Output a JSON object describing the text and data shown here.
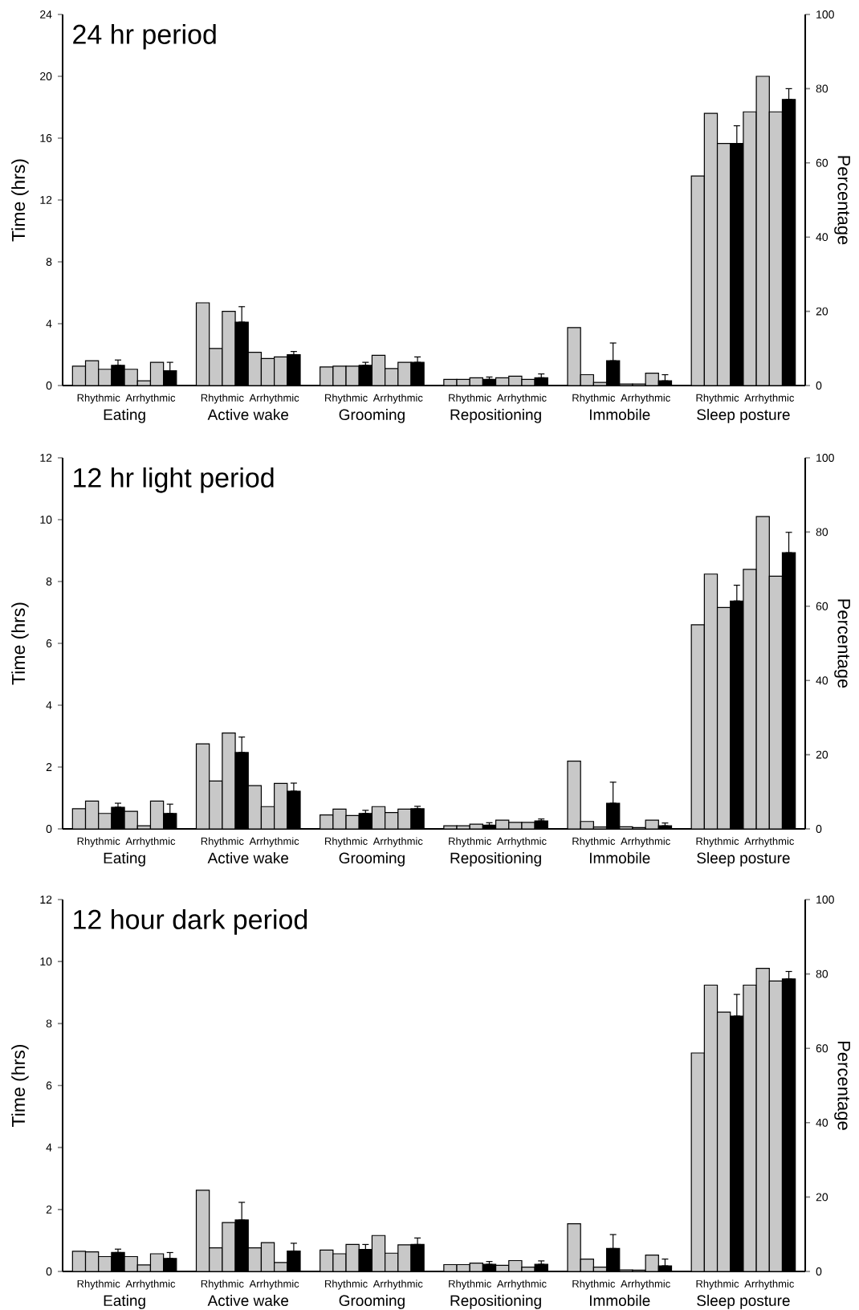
{
  "chart_data": [
    {
      "type": "bar",
      "title": "24 hr period",
      "ylabel": "Time (hrs)",
      "y2label": "Percentage",
      "categories": [
        "Eating",
        "Active wake",
        "Grooming",
        "Repositioning",
        "Immobile",
        "Sleep posture"
      ],
      "ylim": [
        0,
        24
      ],
      "yticks": [
        0,
        4,
        8,
        12,
        16,
        20,
        24
      ],
      "y2lim": [
        0,
        100
      ],
      "y2ticks": [
        0,
        20,
        40,
        60,
        80,
        100
      ],
      "annotations": [
        "Rhythmic",
        "Arrhythmic",
        "Rhythmic",
        "Arrhythmic",
        "Rhythmic",
        "Arrhythmic",
        "Rhythmic",
        "Arrhythmic",
        "Rhythmic",
        "Arrhythmic",
        "Rhythmic",
        "Arrhythmic"
      ],
      "series": [
        {
          "color": "#c8c8c8",
          "values": [
            1.25,
            5.35,
            1.2,
            0.4,
            3.75,
            13.55
          ]
        },
        {
          "color": "#c8c8c8",
          "values": [
            1.6,
            2.4,
            1.25,
            0.4,
            0.7,
            17.6
          ]
        },
        {
          "color": "#c8c8c8",
          "values": [
            1.05,
            4.8,
            1.25,
            0.5,
            0.2,
            15.65
          ]
        },
        {
          "color": "#000000",
          "values": [
            1.3,
            4.1,
            1.3,
            0.4,
            1.6,
            15.65
          ],
          "errors": [
            [
              1.3,
              1.65
            ],
            [
              4.1,
              5.1
            ],
            [
              1.3,
              1.5
            ],
            [
              0.4,
              0.55
            ],
            [
              1.6,
              2.75
            ],
            [
              15.65,
              16.8
            ]
          ]
        },
        {
          "color": "#c8c8c8",
          "values": [
            1.05,
            2.15,
            1.95,
            0.5,
            0.1,
            17.7
          ]
        },
        {
          "color": "#c8c8c8",
          "values": [
            0.3,
            1.75,
            1.1,
            0.6,
            0.1,
            20.0
          ]
        },
        {
          "color": "#c8c8c8",
          "values": [
            1.5,
            1.85,
            1.5,
            0.4,
            0.8,
            17.7
          ]
        },
        {
          "color": "#000000",
          "values": [
            0.95,
            2.0,
            1.5,
            0.5,
            0.3,
            18.5
          ],
          "errors": [
            [
              0.95,
              1.5
            ],
            [
              2.0,
              2.2
            ],
            [
              1.5,
              1.85
            ],
            [
              0.5,
              0.75
            ],
            [
              0.3,
              0.7
            ],
            [
              18.5,
              19.2
            ]
          ]
        }
      ]
    },
    {
      "type": "bar",
      "title": "12 hr light period",
      "ylabel": "Time (hrs)",
      "y2label": "Percentage",
      "categories": [
        "Eating",
        "Active wake",
        "Grooming",
        "Repositioning",
        "Immobile",
        "Sleep posture"
      ],
      "ylim": [
        0,
        12
      ],
      "yticks": [
        0,
        2,
        4,
        6,
        8,
        10,
        12
      ],
      "y2lim": [
        0,
        100
      ],
      "y2ticks": [
        0,
        20,
        40,
        60,
        80,
        100
      ],
      "annotations": [
        "Rhythmic",
        "Arrhythmic",
        "Rhythmic",
        "Arrhythmic",
        "Rhythmic",
        "Arrhythmic",
        "Rhythmic",
        "Arrhythmic",
        "Rhythmic",
        "Arrhythmic",
        "Rhythmic",
        "Arrhythmic"
      ],
      "series": [
        {
          "color": "#c8c8c8",
          "values": [
            0.65,
            2.75,
            0.45,
            0.1,
            2.19,
            6.6
          ]
        },
        {
          "color": "#c8c8c8",
          "values": [
            0.9,
            1.55,
            0.64,
            0.1,
            0.24,
            8.24
          ]
        },
        {
          "color": "#c8c8c8",
          "values": [
            0.5,
            3.1,
            0.43,
            0.15,
            0.06,
            7.16
          ]
        },
        {
          "color": "#000000",
          "values": [
            0.7,
            2.47,
            0.5,
            0.12,
            0.83,
            7.37
          ],
          "errors": [
            [
              0.7,
              0.83
            ],
            [
              2.47,
              2.97
            ],
            [
              0.5,
              0.6
            ],
            [
              0.12,
              0.2
            ],
            [
              0.83,
              1.51
            ],
            [
              7.37,
              7.88
            ]
          ]
        },
        {
          "color": "#c8c8c8",
          "values": [
            0.57,
            1.4,
            0.72,
            0.28,
            0.07,
            8.39
          ]
        },
        {
          "color": "#c8c8c8",
          "values": [
            0.1,
            0.72,
            0.53,
            0.21,
            0.04,
            10.1
          ]
        },
        {
          "color": "#c8c8c8",
          "values": [
            0.9,
            1.47,
            0.64,
            0.21,
            0.28,
            8.17
          ]
        },
        {
          "color": "#000000",
          "values": [
            0.5,
            1.22,
            0.65,
            0.26,
            0.1,
            8.93
          ],
          "errors": [
            [
              0.5,
              0.8
            ],
            [
              1.22,
              1.48
            ],
            [
              0.65,
              0.73
            ],
            [
              0.26,
              0.32
            ],
            [
              0.1,
              0.19
            ],
            [
              8.93,
              9.59
            ]
          ]
        }
      ]
    },
    {
      "type": "bar",
      "title": "12 hour dark period",
      "ylabel": "Time (hrs)",
      "y2label": "Percentage",
      "categories": [
        "Eating",
        "Active wake",
        "Grooming",
        "Repositioning",
        "Immobile",
        "Sleep posture"
      ],
      "ylim": [
        0,
        12
      ],
      "yticks": [
        0,
        2,
        4,
        6,
        8,
        10,
        12
      ],
      "y2lim": [
        0,
        100
      ],
      "y2ticks": [
        0,
        20,
        40,
        60,
        80,
        100
      ],
      "annotations": [
        "Rhythmic",
        "Arrhythmic",
        "Rhythmic",
        "Arrhythmic",
        "Rhythmic",
        "Arrhythmic",
        "Rhythmic",
        "Arrhythmic",
        "Rhythmic",
        "Arrhythmic",
        "Rhythmic",
        "Arrhythmic"
      ],
      "series": [
        {
          "color": "#c8c8c8",
          "values": [
            0.65,
            2.62,
            0.69,
            0.22,
            1.54,
            7.05
          ]
        },
        {
          "color": "#c8c8c8",
          "values": [
            0.63,
            0.76,
            0.57,
            0.22,
            0.4,
            9.24
          ]
        },
        {
          "color": "#c8c8c8",
          "values": [
            0.48,
            1.58,
            0.87,
            0.27,
            0.14,
            8.37
          ]
        },
        {
          "color": "#000000",
          "values": [
            0.61,
            1.66,
            0.71,
            0.23,
            0.74,
            8.24
          ],
          "errors": [
            [
              0.61,
              0.72
            ],
            [
              1.66,
              2.23
            ],
            [
              0.71,
              0.87
            ],
            [
              0.23,
              0.32
            ],
            [
              0.74,
              1.19
            ],
            [
              8.24,
              8.94
            ]
          ]
        },
        {
          "color": "#c8c8c8",
          "values": [
            0.48,
            0.76,
            1.16,
            0.2,
            0.05,
            9.24
          ]
        },
        {
          "color": "#c8c8c8",
          "values": [
            0.21,
            0.93,
            0.59,
            0.35,
            0.04,
            9.78
          ]
        },
        {
          "color": "#c8c8c8",
          "values": [
            0.57,
            0.29,
            0.86,
            0.14,
            0.53,
            9.37
          ]
        },
        {
          "color": "#000000",
          "values": [
            0.42,
            0.66,
            0.87,
            0.23,
            0.18,
            9.44
          ],
          "errors": [
            [
              0.42,
              0.61
            ],
            [
              0.66,
              0.91
            ],
            [
              0.87,
              1.08
            ],
            [
              0.23,
              0.34
            ],
            [
              0.18,
              0.4
            ],
            [
              9.44,
              9.68
            ]
          ]
        }
      ]
    }
  ]
}
